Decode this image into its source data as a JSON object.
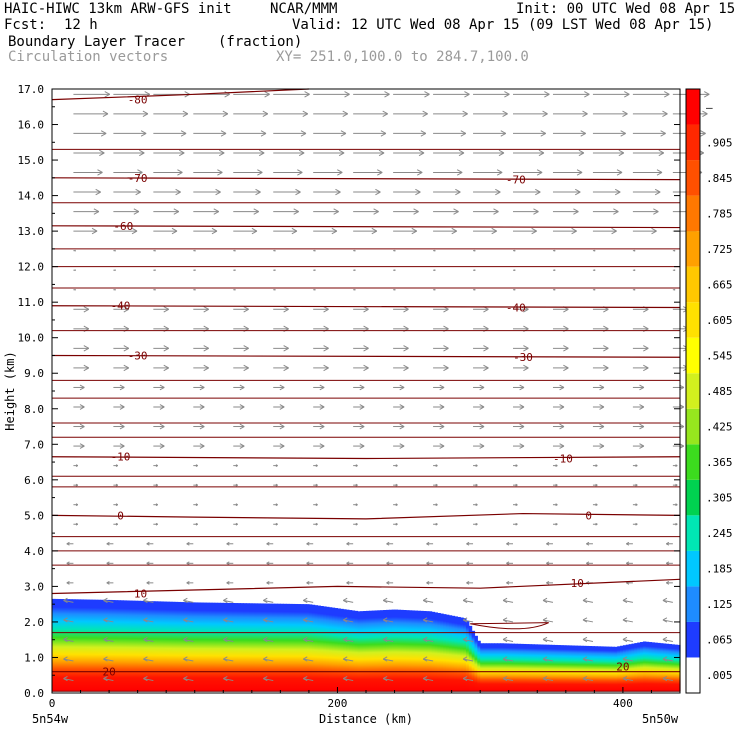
{
  "header": {
    "model": "HAIC-HIWC 13km ARW-GFS init",
    "org": "NCAR/MMM",
    "init": "Init: 00 UTC Wed 08 Apr 15",
    "fcst_label": "Fcst:",
    "fcst_value": "12 h",
    "valid": "Valid: 12 UTC Wed 08 Apr 15 (09 LST Wed 08 Apr 15)",
    "field": "Boundary Layer Tracer",
    "units": "(fraction)",
    "vectors": "Circulation vectors",
    "xy": "XY= 251.0,100.0 to 284.7,100.0"
  },
  "chart_data": {
    "type": "heatmap",
    "xlabel": "Distance (km)",
    "ylabel": "Height (km)",
    "xlim": [
      0,
      440
    ],
    "ylim": [
      0.0,
      17.0
    ],
    "x_ticks": [
      "0",
      "200",
      "400"
    ],
    "x_tick_values": [
      0,
      200,
      400
    ],
    "y_ticks": [
      "0.0",
      "1.0",
      "2.0",
      "3.0",
      "4.0",
      "5.0",
      "6.0",
      "7.0",
      "8.0",
      "9.0",
      "10.0",
      "11.0",
      "12.0",
      "13.0",
      "14.0",
      "15.0",
      "16.0",
      "17.0"
    ],
    "endpoint_left": "5n54w",
    "endpoint_right": "5n50w",
    "colorbar": {
      "labels": [
        ".005",
        ".065",
        ".125",
        ".185",
        ".245",
        ".305",
        ".365",
        ".425",
        ".485",
        ".545",
        ".605",
        ".665",
        ".725",
        ".785",
        ".845",
        ".905",
        "–"
      ],
      "colors": [
        "#ffffff",
        "#1e3cff",
        "#1e8cff",
        "#00c8ff",
        "#00e6b4",
        "#00d250",
        "#3cdc1e",
        "#96e61e",
        "#d2f01e",
        "#ffff00",
        "#ffe100",
        "#ffc800",
        "#ffa000",
        "#ff7800",
        "#ff5000",
        "#ff2800",
        "#ff0000"
      ]
    },
    "tracer_top_km": {
      "x": [
        0,
        40,
        100,
        180,
        215,
        240,
        265,
        290,
        300,
        315,
        395,
        415,
        440
      ],
      "y": [
        2.65,
        2.62,
        2.55,
        2.5,
        2.3,
        2.35,
        2.3,
        2.1,
        1.4,
        1.4,
        1.3,
        1.45,
        1.35
      ]
    },
    "temperature_contours": [
      {
        "label": "-80",
        "x": [
          0,
          100,
          180
        ],
        "y": [
          16.7,
          16.85,
          17.0
        ]
      },
      {
        "label": "-70",
        "x": [
          0,
          440
        ],
        "y": [
          14.5,
          14.45
        ]
      },
      {
        "label": "-60",
        "x": [
          0,
          440
        ],
        "y": [
          13.15,
          13.1
        ]
      },
      {
        "label": "-40",
        "x": [
          0,
          440
        ],
        "y": [
          10.9,
          10.85
        ]
      },
      {
        "label": "-30",
        "x": [
          0,
          440
        ],
        "y": [
          9.5,
          9.45
        ]
      },
      {
        "label": "-10",
        "x": [
          0,
          220,
          440
        ],
        "y": [
          6.65,
          6.6,
          6.65
        ]
      },
      {
        "label": "0",
        "x": [
          0,
          100,
          220,
          330,
          440
        ],
        "y": [
          5.0,
          4.95,
          4.9,
          5.05,
          5.0
        ]
      },
      {
        "label": "10",
        "x": [
          0,
          200,
          300,
          440
        ],
        "y": [
          2.8,
          3.0,
          2.95,
          3.2
        ]
      },
      {
        "label": "20",
        "x": [
          0,
          440
        ],
        "y": [
          0.6,
          0.6
        ]
      }
    ],
    "contour_label_positions": [
      {
        "text": "-80",
        "x": 60,
        "y": 16.7
      },
      {
        "text": "-70",
        "x": 60,
        "y": 14.5
      },
      {
        "text": "-70",
        "x": 325,
        "y": 14.45
      },
      {
        "text": "-60",
        "x": 50,
        "y": 13.15
      },
      {
        "text": "-40",
        "x": 48,
        "y": 10.9
      },
      {
        "text": "-40",
        "x": 325,
        "y": 10.85
      },
      {
        "text": "-30",
        "x": 60,
        "y": 9.5
      },
      {
        "text": "-30",
        "x": 330,
        "y": 9.45
      },
      {
        "text": "-10",
        "x": 48,
        "y": 6.65
      },
      {
        "text": "-10",
        "x": 358,
        "y": 6.6
      },
      {
        "text": "0",
        "x": 48,
        "y": 5.0
      },
      {
        "text": "0",
        "x": 376,
        "y": 5.0
      },
      {
        "text": "10",
        "x": 62,
        "y": 2.8
      },
      {
        "text": "10",
        "x": 368,
        "y": 3.1
      },
      {
        "text": "20",
        "x": 40,
        "y": 0.6
      },
      {
        "text": "20",
        "x": 400,
        "y": 0.75
      }
    ]
  }
}
